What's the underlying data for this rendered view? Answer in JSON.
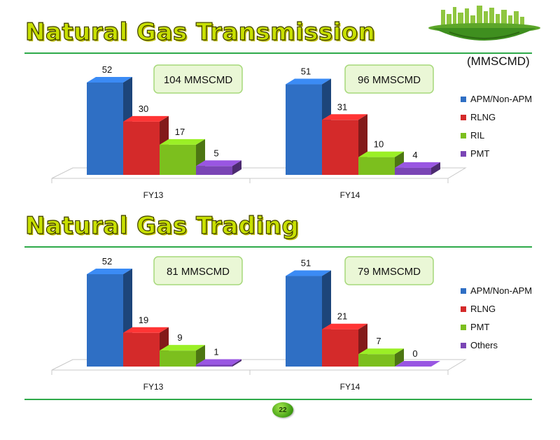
{
  "slide": {
    "unit_label": "(MMSCMD)",
    "page_number": "22"
  },
  "colors": {
    "title_fill": "#c8e000",
    "rule": "#2eaa4a",
    "callout_fill": "#eaf7d6",
    "callout_border": "#a6d87a",
    "series": [
      "#2f6fc4",
      "#d42a2a",
      "#7cbf1e",
      "#7a45b5"
    ]
  },
  "chart_data": [
    {
      "type": "bar",
      "title": "Natural Gas Transmission",
      "categories": [
        "FY13",
        "FY14"
      ],
      "series": [
        {
          "name": "APM/Non-APM",
          "values": [
            52,
            51
          ],
          "color": "#2f6fc4"
        },
        {
          "name": "RLNG",
          "values": [
            30,
            31
          ],
          "color": "#d42a2a"
        },
        {
          "name": "RIL",
          "values": [
            17,
            10
          ],
          "color": "#7cbf1e"
        },
        {
          "name": "PMT",
          "values": [
            5,
            4
          ],
          "color": "#7a45b5"
        }
      ],
      "totals": [
        "104 MMSCMD",
        "96 MMSCMD"
      ],
      "ylim": [
        0,
        52
      ],
      "grid": false,
      "legend": "right",
      "data_labels": true
    },
    {
      "type": "bar",
      "title": "Natural Gas Trading",
      "categories": [
        "FY13",
        "FY14"
      ],
      "series": [
        {
          "name": "APM/Non-APM",
          "values": [
            52,
            51
          ],
          "color": "#2f6fc4"
        },
        {
          "name": "RLNG",
          "values": [
            19,
            21
          ],
          "color": "#d42a2a"
        },
        {
          "name": "PMT",
          "values": [
            9,
            7
          ],
          "color": "#7cbf1e"
        },
        {
          "name": "Others",
          "values": [
            1,
            0
          ],
          "color": "#7a45b5"
        }
      ],
      "totals": [
        "81 MMSCMD",
        "79 MMSCMD"
      ],
      "ylim": [
        0,
        52
      ],
      "grid": false,
      "legend": "right",
      "data_labels": true
    }
  ]
}
